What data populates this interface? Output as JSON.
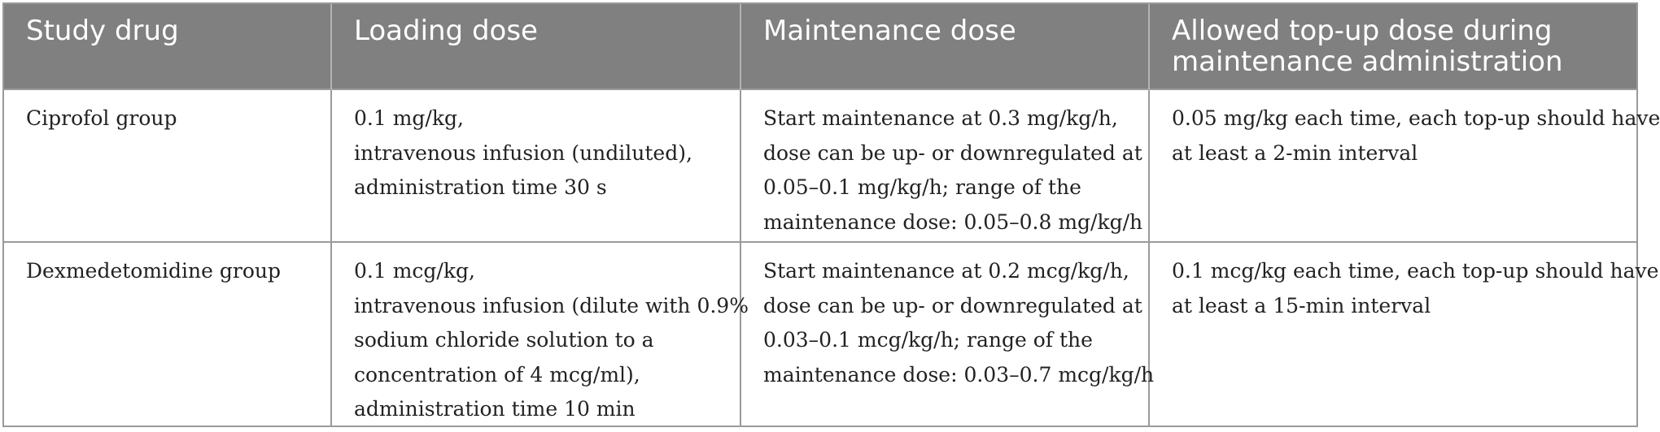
{
  "table": {
    "headers": [
      "Study drug",
      "Loading dose",
      "Maintenance dose",
      "Allowed top-up dose during maintenance administration"
    ],
    "rows": [
      {
        "study_drug": "Ciprofol group",
        "loading_dose": [
          "0.1 mg/kg,",
          "intravenous infusion (undiluted),",
          "administration time 30 s"
        ],
        "maintenance_dose": [
          "Start maintenance at 0.3 mg/kg/h,",
          "dose can be up- or downregulated at",
          "0.05–0.1 mg/kg/h; range of the",
          "maintenance dose: 0.05–0.8 mg/kg/h"
        ],
        "top_up_dose": [
          "0.05 mg/kg each time, each top-up should have",
          "at least a 2-min interval"
        ]
      },
      {
        "study_drug": "Dexmedetomidine group",
        "loading_dose": [
          "0.1 mcg/kg,",
          "intravenous infusion (dilute with 0.9%",
          "sodium chloride solution to a",
          "concentration of 4 mcg/ml),",
          "administration time 10 min"
        ],
        "maintenance_dose": [
          "Start maintenance at 0.2 mcg/kg/h,",
          "dose can be up- or downregulated at",
          "0.03–0.1 mcg/kg/h; range of the",
          "maintenance dose: 0.03–0.7 mcg/kg/h"
        ],
        "top_up_dose": [
          "0.1 mcg/kg each time, each top-up should have",
          "at least a 15-min interval"
        ]
      }
    ]
  },
  "colors": {
    "header_background": "#808080",
    "header_text": "#ffffff",
    "border": "#9a9a9a",
    "body_text": "#222222"
  }
}
